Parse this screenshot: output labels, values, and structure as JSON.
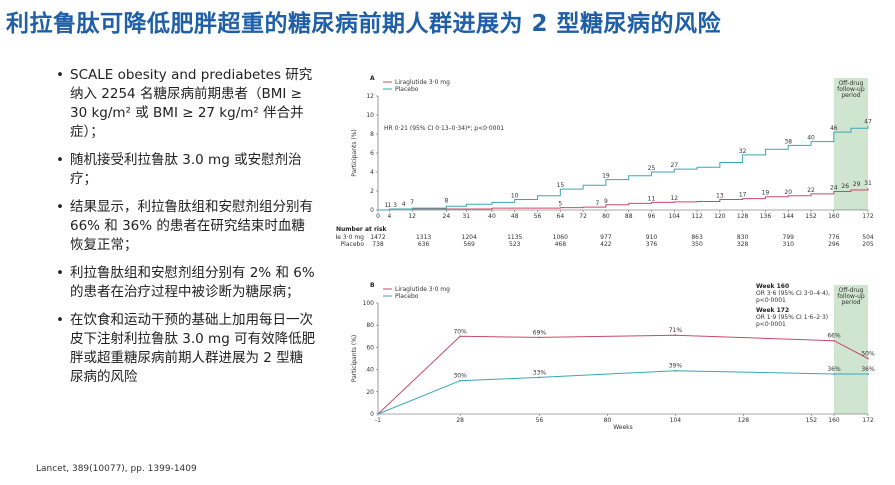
{
  "title": "利拉鲁肽可降低肥胖超重的糖尿病前期人群进展为 2 型糖尿病的风险",
  "bullets": [
    "SCALE obesity and prediabetes 研究纳入 2254 名糖尿病前期患者（BMI ≥ 30 kg/m² 或 BMI ≥ 27 kg/m² 伴合并症）；",
    "随机接受利拉鲁肽 3.0 mg 或安慰剂治疗；",
    "结果显示，利拉鲁肽组和安慰剂组分别有 66% 和 36% 的患者在研究结束时血糖恢复正常；",
    "利拉鲁肽组和安慰剂组分别有 2% 和 6% 的患者在治疗过程中被诊断为糖尿病；",
    "在饮食和运动干预的基础上加用每日一次皮下注射利拉鲁肽 3.0 mg 可有效降低肥胖或超重糖尿病前期人群进展为 2 型糖尿病的风险"
  ],
  "bullet_symbol": "•",
  "reference": "Lancet, 389(10077), pp. 1399-1409",
  "colors": {
    "liraglutide": "#c94a6a",
    "placebo": "#3aa7b5",
    "title": "#1f5fa8",
    "shade": "#cfe5cf"
  },
  "chart_data": [
    {
      "type": "line",
      "panel": "A",
      "legend": [
        "Liraglutide 3·0 mg",
        "Placebo"
      ],
      "ylabel": "Participants (%)",
      "ylim": [
        0,
        12
      ],
      "yticks": [
        0,
        2,
        4,
        6,
        8,
        10,
        12
      ],
      "xticks": [
        0,
        4,
        12,
        24,
        31,
        40,
        48,
        56,
        64,
        72,
        80,
        88,
        96,
        104,
        112,
        120,
        128,
        136,
        144,
        152,
        160,
        172
      ],
      "xlim": [
        0,
        172
      ],
      "shade_label": "Off-drug follow-up period",
      "shade_range": [
        160,
        172
      ],
      "annotation": "HR 0·21 (95% CI 0·13–0·34)*; p<0·0001",
      "series": [
        {
          "name": "Liraglutide 3·0 mg",
          "x": [
            0,
            4,
            12,
            24,
            31,
            40,
            48,
            56,
            64,
            72,
            80,
            88,
            96,
            104,
            112,
            120,
            128,
            136,
            144,
            152,
            160,
            166,
            172
          ],
          "y": [
            0,
            0.1,
            0.1,
            0.1,
            0.1,
            0.2,
            0.2,
            0.2,
            0.25,
            0.3,
            0.55,
            0.7,
            0.8,
            0.85,
            0.9,
            1.1,
            1.2,
            1.4,
            1.5,
            1.7,
            1.95,
            2.1,
            2.3
          ],
          "labels": [
            {
              "x": 4,
              "y": 0.1,
              "text": "1"
            },
            {
              "x": 64,
              "y": 0.25,
              "text": "5"
            },
            {
              "x": 77,
              "y": 0.3,
              "text": "7"
            },
            {
              "x": 80,
              "y": 0.55,
              "text": "9"
            },
            {
              "x": 96,
              "y": 0.8,
              "text": "11"
            },
            {
              "x": 104,
              "y": 0.85,
              "text": "12"
            },
            {
              "x": 120,
              "y": 1.1,
              "text": "13"
            },
            {
              "x": 128,
              "y": 1.2,
              "text": "17"
            },
            {
              "x": 136,
              "y": 1.4,
              "text": "19"
            },
            {
              "x": 144,
              "y": 1.5,
              "text": "20"
            },
            {
              "x": 152,
              "y": 1.7,
              "text": "22"
            },
            {
              "x": 160,
              "y": 1.95,
              "text": "24"
            },
            {
              "x": 164,
              "y": 2.1,
              "text": "26"
            },
            {
              "x": 168,
              "y": 2.3,
              "text": "29"
            },
            {
              "x": 172,
              "y": 2.4,
              "text": "31"
            }
          ]
        },
        {
          "name": "Placebo",
          "x": [
            0,
            4,
            12,
            24,
            31,
            40,
            48,
            56,
            64,
            72,
            80,
            88,
            96,
            104,
            112,
            120,
            128,
            136,
            144,
            152,
            160,
            166,
            172
          ],
          "y": [
            0,
            0.1,
            0.2,
            0.4,
            0.6,
            0.8,
            1.1,
            1.5,
            2.2,
            2.6,
            3.2,
            3.6,
            4.0,
            4.3,
            4.5,
            5.0,
            5.8,
            6.4,
            6.8,
            7.2,
            8.2,
            8.6,
            8.9
          ],
          "labels": [
            {
              "x": 3,
              "y": 0.1,
              "text": "1"
            },
            {
              "x": 6,
              "y": 0.1,
              "text": "3"
            },
            {
              "x": 9,
              "y": 0.2,
              "text": "4"
            },
            {
              "x": 12,
              "y": 0.4,
              "text": "7"
            },
            {
              "x": 24,
              "y": 0.6,
              "text": "8"
            },
            {
              "x": 48,
              "y": 1.1,
              "text": "10"
            },
            {
              "x": 64,
              "y": 2.2,
              "text": "15"
            },
            {
              "x": 80,
              "y": 3.2,
              "text": "19"
            },
            {
              "x": 96,
              "y": 4.0,
              "text": "25"
            },
            {
              "x": 104,
              "y": 4.3,
              "text": "27"
            },
            {
              "x": 128,
              "y": 5.8,
              "text": "32"
            },
            {
              "x": 144,
              "y": 6.8,
              "text": "38"
            },
            {
              "x": 152,
              "y": 7.2,
              "text": "40"
            },
            {
              "x": 160,
              "y": 8.2,
              "text": "46"
            },
            {
              "x": 172,
              "y": 8.9,
              "text": "47"
            }
          ]
        }
      ],
      "risk_table": {
        "title": "Number at risk",
        "rows": [
          {
            "name": "Liraglutide 3·0 mg",
            "values": [
              "1472",
              "1313",
              "1204",
              "1135",
              "1060",
              "977",
              "910",
              "863",
              "830",
              "799",
              "776",
              "504"
            ]
          },
          {
            "name": "Placebo",
            "values": [
              "738",
              "636",
              "569",
              "523",
              "468",
              "422",
              "376",
              "350",
              "328",
              "310",
              "296",
              "205"
            ]
          }
        ],
        "x": [
          0,
          16,
          32,
          48,
          64,
          80,
          96,
          112,
          128,
          144,
          160,
          172
        ]
      }
    },
    {
      "type": "line",
      "panel": "B",
      "legend": [
        "Liraglutide 3·0 mg",
        "Placebo"
      ],
      "ylabel": "Participants (%)",
      "ylim": [
        0,
        100
      ],
      "yticks": [
        0,
        20,
        40,
        60,
        80,
        100
      ],
      "xticks": [
        -1,
        28,
        56,
        80,
        104,
        128,
        152,
        160,
        172
      ],
      "xlim": [
        -1,
        172
      ],
      "xlabel": "Weeks",
      "shade_label": "Off-drug follow-up period",
      "shade_range": [
        160,
        172
      ],
      "annotations": [
        {
          "title": "Week 160",
          "text": "OR 3·6 (95% CI 3·0–4·4),",
          "p": "p<0·0001"
        },
        {
          "title": "Week 172",
          "text": "OR 1·9 (95% CI 1·6–2·3)",
          "p": "p<0·0001"
        }
      ],
      "series": [
        {
          "name": "Liraglutide 3·0 mg",
          "x": [
            -1,
            28,
            56,
            104,
            160,
            172
          ],
          "y": [
            0,
            70,
            69,
            71,
            66,
            50
          ],
          "labels": [
            "",
            "70%",
            "69%",
            "71%",
            "66%",
            "50%"
          ]
        },
        {
          "name": "Placebo",
          "x": [
            -1,
            28,
            56,
            104,
            160,
            172
          ],
          "y": [
            0,
            30,
            33,
            39,
            36,
            36
          ],
          "labels": [
            "",
            "30%",
            "33%",
            "39%",
            "36%",
            "36%"
          ]
        }
      ]
    }
  ]
}
